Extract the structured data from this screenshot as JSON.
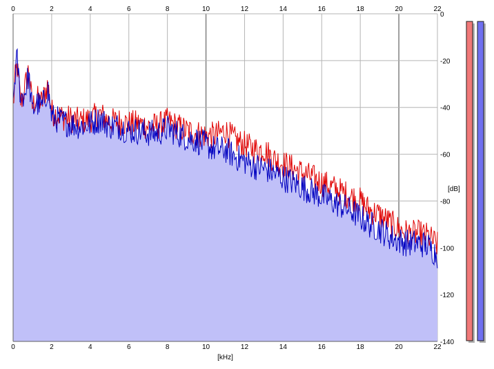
{
  "chart_data": {
    "type": "area",
    "title": "",
    "xlabel": "[kHz]",
    "ylabel": "[dB]",
    "xlim": [
      0,
      22
    ],
    "ylim": [
      -140,
      0
    ],
    "x_ticks": [
      0,
      2,
      4,
      6,
      8,
      10,
      12,
      14,
      16,
      18,
      20,
      22
    ],
    "y_ticks": [
      0,
      -20,
      -40,
      -60,
      -80,
      -100,
      -120,
      -140
    ],
    "grid": true,
    "fill_color": "#c0c0f8",
    "series": [
      {
        "color": "#e00000",
        "x": [
          0.0,
          0.1,
          0.2,
          0.3,
          0.4,
          0.6,
          0.8,
          1.0,
          1.2,
          1.5,
          1.8,
          2.0,
          2.5,
          3.0,
          3.5,
          4.0,
          4.5,
          5.0,
          5.5,
          6.0,
          6.5,
          7.0,
          7.5,
          8.0,
          8.5,
          9.0,
          9.5,
          10.0,
          10.5,
          11.0,
          11.5,
          12.0,
          12.5,
          13.0,
          13.5,
          14.0,
          14.5,
          15.0,
          15.5,
          16.0,
          16.5,
          17.0,
          17.5,
          18.0,
          18.5,
          19.0,
          19.5,
          20.0,
          20.5,
          21.0,
          21.5,
          22.0
        ],
        "values": [
          -40,
          -28,
          -22,
          -30,
          -38,
          -32,
          -24,
          -40,
          -36,
          -38,
          -30,
          -42,
          -44,
          -45,
          -46,
          -45,
          -43,
          -46,
          -46,
          -47,
          -47,
          -48,
          -48,
          -46,
          -48,
          -50,
          -51,
          -52,
          -52,
          -50,
          -54,
          -56,
          -58,
          -58,
          -62,
          -64,
          -66,
          -68,
          -70,
          -72,
          -74,
          -76,
          -78,
          -80,
          -84,
          -86,
          -89,
          -92,
          -94,
          -94,
          -95,
          -99
        ]
      },
      {
        "color": "#0000c0",
        "x": [
          0.0,
          0.1,
          0.2,
          0.3,
          0.4,
          0.6,
          0.8,
          1.0,
          1.2,
          1.5,
          1.8,
          2.0,
          2.5,
          3.0,
          3.5,
          4.0,
          4.5,
          5.0,
          5.5,
          6.0,
          6.5,
          7.0,
          7.5,
          8.0,
          8.5,
          9.0,
          9.5,
          10.0,
          10.5,
          11.0,
          11.5,
          12.0,
          12.5,
          13.0,
          13.5,
          14.0,
          14.5,
          15.0,
          15.5,
          16.0,
          16.5,
          17.0,
          17.5,
          18.0,
          18.5,
          19.0,
          19.5,
          20.0,
          20.5,
          21.0,
          21.5,
          22.0
        ],
        "values": [
          -38,
          -26,
          -19,
          -28,
          -36,
          -34,
          -26,
          -42,
          -38,
          -40,
          -32,
          -44,
          -46,
          -47,
          -48,
          -47,
          -45,
          -48,
          -48,
          -50,
          -50,
          -51,
          -51,
          -49,
          -51,
          -53,
          -54,
          -56,
          -58,
          -58,
          -61,
          -63,
          -65,
          -66,
          -68,
          -70,
          -72,
          -74,
          -76,
          -78,
          -80,
          -82,
          -84,
          -87,
          -90,
          -92,
          -95,
          -97,
          -98,
          -98,
          -99,
          -103
        ]
      }
    ],
    "level_meters": [
      {
        "color": "#f07878",
        "value": -3
      },
      {
        "color": "#7070f0",
        "value": -4
      }
    ]
  }
}
